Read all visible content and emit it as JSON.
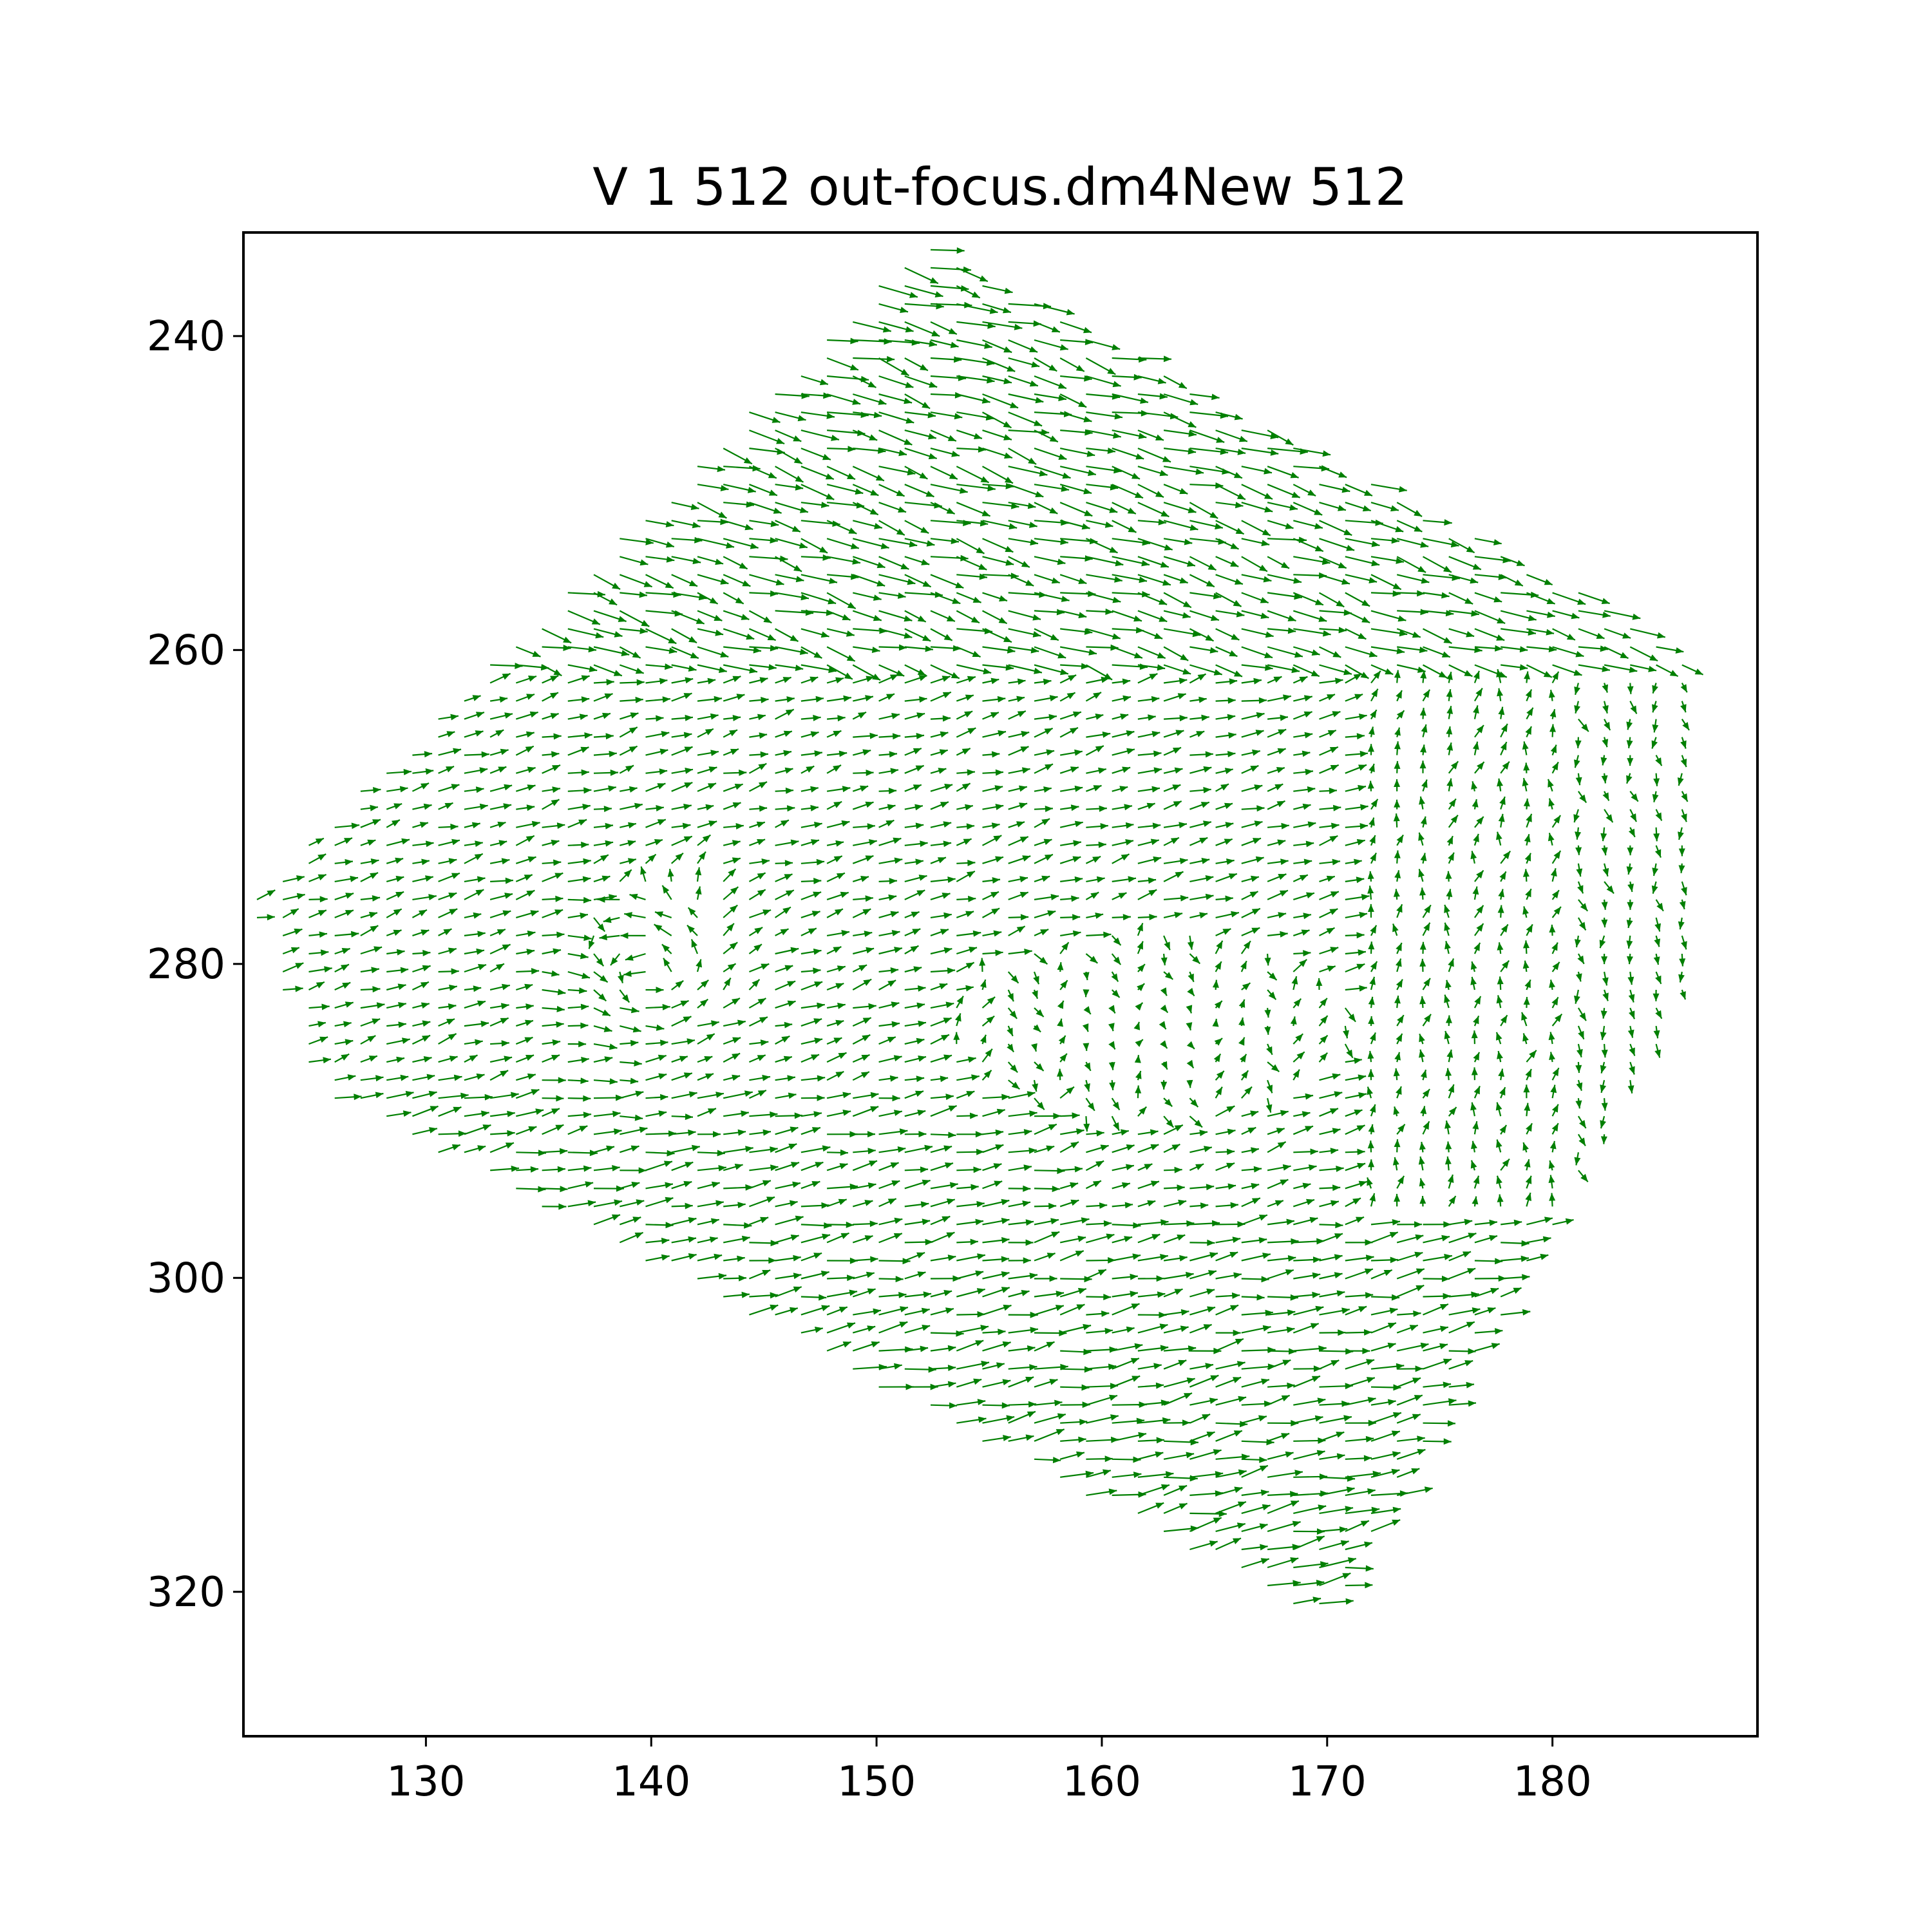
{
  "chart_data": {
    "type": "quiver",
    "title": "V 1 512 out-focus.dm4New 512",
    "xlabel": "",
    "ylabel": "",
    "xlim": [
      121.9,
      189.1
    ],
    "ylim": [
      329.2,
      233.4
    ],
    "y_inverted": true,
    "grid": false,
    "xticks": [
      130,
      140,
      150,
      160,
      170,
      180
    ],
    "yticks": [
      240,
      260,
      280,
      300,
      320
    ],
    "color": "#007f00",
    "field_region_corners": [
      [
        122,
        276
      ],
      [
        152,
        234
      ],
      [
        186,
        260
      ],
      [
        186,
        282
      ],
      [
        170,
        322
      ],
      [
        125,
        288
      ]
    ],
    "vortex_center": [
      140,
      281
    ],
    "quiet_zone_center": [
      162,
      284
    ]
  }
}
